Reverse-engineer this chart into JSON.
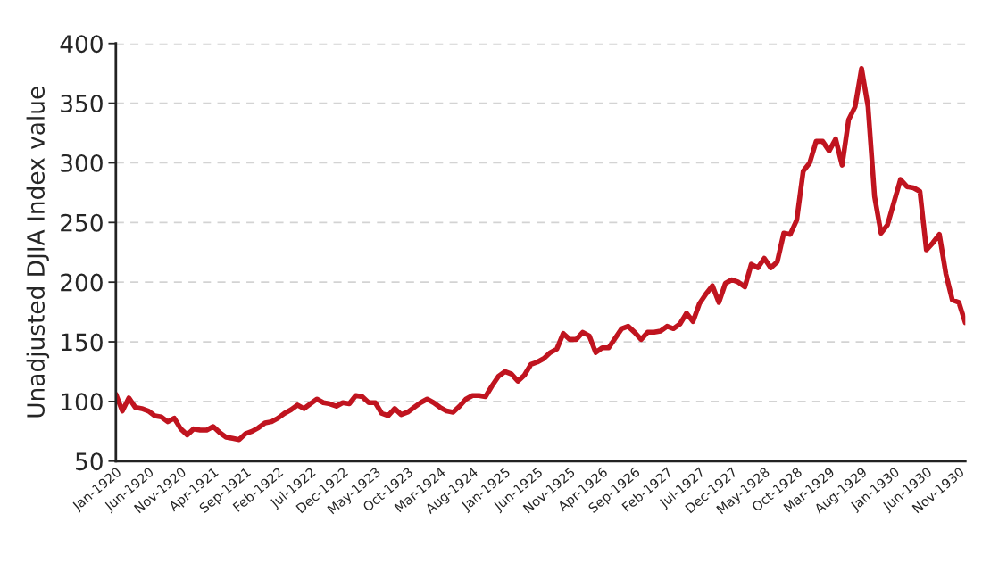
{
  "chart_data": {
    "type": "line",
    "ylabel": "Unadjusted DJIA Index value",
    "x": [
      "1920-01",
      "1920-02",
      "1920-03",
      "1920-04",
      "1920-05",
      "1920-06",
      "1920-07",
      "1920-08",
      "1920-09",
      "1920-10",
      "1920-11",
      "1920-12",
      "1921-01",
      "1921-02",
      "1921-03",
      "1921-04",
      "1921-05",
      "1921-06",
      "1921-07",
      "1921-08",
      "1921-09",
      "1921-10",
      "1921-11",
      "1921-12",
      "1922-01",
      "1922-02",
      "1922-03",
      "1922-04",
      "1922-05",
      "1922-06",
      "1922-07",
      "1922-08",
      "1922-09",
      "1922-10",
      "1922-11",
      "1922-12",
      "1923-01",
      "1923-02",
      "1923-03",
      "1923-04",
      "1923-05",
      "1923-06",
      "1923-07",
      "1923-08",
      "1923-09",
      "1923-10",
      "1923-11",
      "1923-12",
      "1924-01",
      "1924-02",
      "1924-03",
      "1924-04",
      "1924-05",
      "1924-06",
      "1924-07",
      "1924-08",
      "1924-09",
      "1924-10",
      "1924-11",
      "1924-12",
      "1925-01",
      "1925-02",
      "1925-03",
      "1925-04",
      "1925-05",
      "1925-06",
      "1925-07",
      "1925-08",
      "1925-09",
      "1925-10",
      "1925-11",
      "1925-12",
      "1926-01",
      "1926-02",
      "1926-03",
      "1926-04",
      "1926-05",
      "1926-06",
      "1926-07",
      "1926-08",
      "1926-09",
      "1926-10",
      "1926-11",
      "1926-12",
      "1927-01",
      "1927-02",
      "1927-03",
      "1927-04",
      "1927-05",
      "1927-06",
      "1927-07",
      "1927-08",
      "1927-09",
      "1927-10",
      "1927-11",
      "1927-12",
      "1928-01",
      "1928-02",
      "1928-03",
      "1928-04",
      "1928-05",
      "1928-06",
      "1928-07",
      "1928-08",
      "1928-09",
      "1928-10",
      "1928-11",
      "1928-12",
      "1929-01",
      "1929-02",
      "1929-03",
      "1929-04",
      "1929-05",
      "1929-06",
      "1929-07",
      "1929-08",
      "1929-09",
      "1929-10",
      "1929-11",
      "1929-12",
      "1930-01",
      "1930-02",
      "1930-03",
      "1930-04",
      "1930-05",
      "1930-06",
      "1930-07",
      "1930-08",
      "1930-09",
      "1930-10",
      "1930-11",
      "1930-12"
    ],
    "series": [
      {
        "color": "#c0141f",
        "values": [
          106,
          92,
          103,
          95,
          94,
          92,
          88,
          87,
          83,
          86,
          77,
          72,
          77,
          76,
          76,
          79,
          74,
          70,
          69,
          68,
          73,
          75,
          78,
          82,
          83,
          86,
          90,
          93,
          97,
          94,
          98,
          102,
          99,
          98,
          96,
          99,
          98,
          105,
          104,
          99,
          99,
          90,
          88,
          94,
          89,
          91,
          95,
          99,
          102,
          99,
          95,
          92,
          91,
          96,
          102,
          105,
          105,
          104,
          113,
          121,
          125,
          123,
          117,
          122,
          131,
          133,
          136,
          141,
          144,
          157,
          152,
          152,
          158,
          155,
          141,
          145,
          145,
          153,
          161,
          163,
          158,
          152,
          158,
          158,
          159,
          163,
          161,
          165,
          174,
          167,
          182,
          190,
          197,
          183,
          199,
          202,
          200,
          196,
          215,
          212,
          220,
          212,
          217,
          241,
          240,
          252,
          293,
          300,
          318,
          318,
          310,
          320,
          298,
          336,
          347,
          379,
          347,
          272,
          241,
          248,
          267,
          286,
          280,
          279,
          276,
          227,
          233,
          240,
          207,
          185,
          183,
          166
        ]
      }
    ],
    "xlim": [
      "1920-01",
      "1930-12"
    ],
    "xticks": [
      {
        "value": "1920-01",
        "label": "Jan-1920"
      },
      {
        "value": "1920-06",
        "label": "Jun-1920"
      },
      {
        "value": "1920-11",
        "label": "Nov-1920"
      },
      {
        "value": "1921-04",
        "label": "Apr-1921"
      },
      {
        "value": "1921-09",
        "label": "Sep-1921"
      },
      {
        "value": "1922-02",
        "label": "Feb-1922"
      },
      {
        "value": "1922-07",
        "label": "Jul-1922"
      },
      {
        "value": "1922-12",
        "label": "Dec-1922"
      },
      {
        "value": "1923-05",
        "label": "May-1923"
      },
      {
        "value": "1923-10",
        "label": "Oct-1923"
      },
      {
        "value": "1924-03",
        "label": "Mar-1924"
      },
      {
        "value": "1924-08",
        "label": "Aug-1924"
      },
      {
        "value": "1925-01",
        "label": "Jan-1925"
      },
      {
        "value": "1925-06",
        "label": "Jun-1925"
      },
      {
        "value": "1925-11",
        "label": "Nov-1925"
      },
      {
        "value": "1926-04",
        "label": "Apr-1926"
      },
      {
        "value": "1926-09",
        "label": "Sep-1926"
      },
      {
        "value": "1927-02",
        "label": "Feb-1927"
      },
      {
        "value": "1927-07",
        "label": "Jul-1927"
      },
      {
        "value": "1927-12",
        "label": "Dec-1927"
      },
      {
        "value": "1928-05",
        "label": "May-1928"
      },
      {
        "value": "1928-10",
        "label": "Oct-1928"
      },
      {
        "value": "1929-03",
        "label": "Mar-1929"
      },
      {
        "value": "1929-08",
        "label": "Aug-1929"
      },
      {
        "value": "1930-01",
        "label": "Jan-1930"
      },
      {
        "value": "1930-06",
        "label": "Jun-1930"
      },
      {
        "value": "1930-11",
        "label": "Nov-1930"
      }
    ],
    "ylim": [
      50,
      400
    ],
    "yticks": [
      50,
      100,
      150,
      200,
      250,
      300,
      350,
      400
    ],
    "grid": "y",
    "marker": "none",
    "line_style": "solid"
  }
}
